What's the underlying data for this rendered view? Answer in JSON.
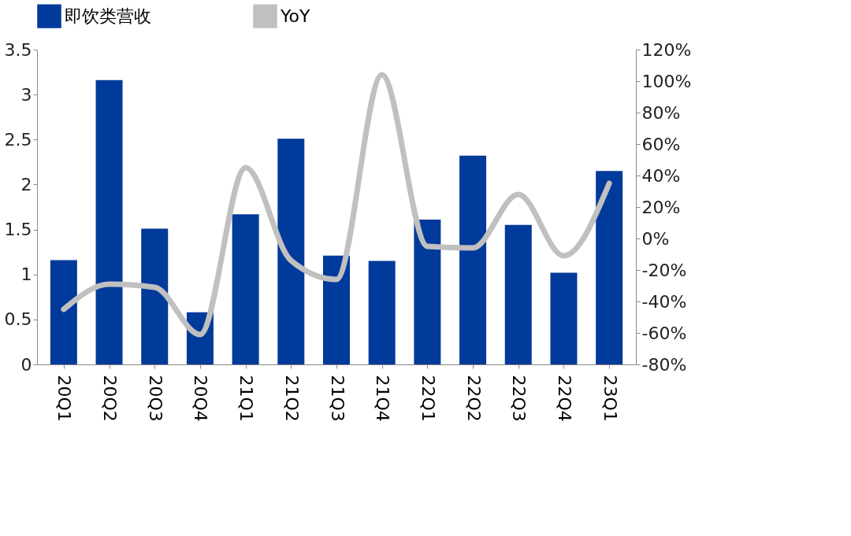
{
  "chart_data": {
    "type": "bar",
    "categories": [
      "20Q1",
      "20Q2",
      "20Q3",
      "20Q4",
      "21Q1",
      "21Q2",
      "21Q3",
      "21Q4",
      "22Q1",
      "22Q2",
      "22Q3",
      "22Q4",
      "23Q1"
    ],
    "series": [
      {
        "name": "即饮类营收",
        "color": "#003a9b",
        "values": [
          1.16,
          3.16,
          1.51,
          0.58,
          1.67,
          2.51,
          1.21,
          1.15,
          1.61,
          2.32,
          1.55,
          1.02,
          2.15
        ]
      },
      {
        "name": "YoY",
        "type": "line",
        "axis": "y2",
        "color": "#c0c0c0",
        "values": [
          -45,
          -29,
          -31,
          -61,
          45,
          -14,
          -26,
          104,
          -5,
          -6,
          28,
          -11,
          35
        ]
      }
    ],
    "ylim": [
      0,
      3.5
    ],
    "yticks": [
      0,
      {
        "value": 0.5,
        "label": "0.5"
      },
      1,
      {
        "value": 1.5,
        "label": "1.5"
      },
      2,
      {
        "value": 2.5,
        "label": "2.5"
      },
      3,
      {
        "value": 3.5,
        "label": "3.5"
      }
    ],
    "y2lim": [
      -80,
      120
    ],
    "y2ticks": [
      {
        "value": -80,
        "label": "-80%"
      },
      {
        "value": -60,
        "label": "-60%"
      },
      {
        "value": -40,
        "label": "-40%"
      },
      {
        "value": -20,
        "label": "-20%"
      },
      {
        "value": 0,
        "label": "0%"
      },
      {
        "value": 20,
        "label": "20%"
      },
      {
        "value": 40,
        "label": "40%"
      },
      {
        "value": 60,
        "label": "60%"
      },
      {
        "value": 80,
        "label": "80%"
      },
      {
        "value": 100,
        "label": "100%"
      },
      {
        "value": 120,
        "label": "120%"
      }
    ],
    "legend": "top",
    "grid": false,
    "marker": "none"
  }
}
